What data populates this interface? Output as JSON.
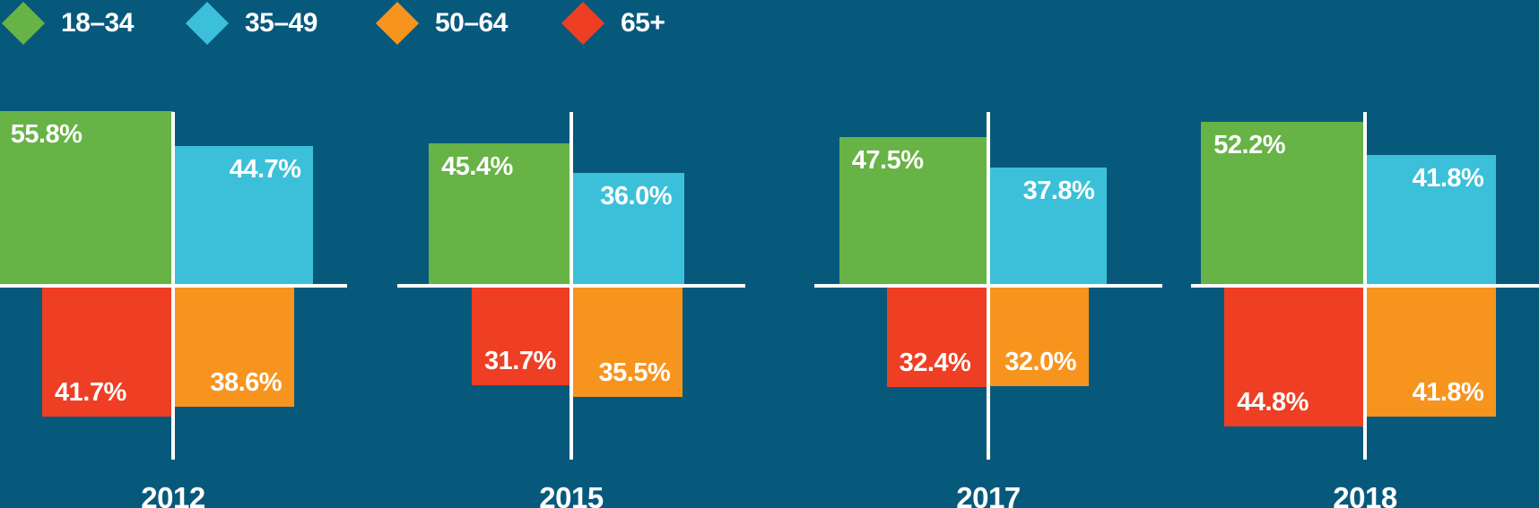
{
  "background_color": "#07597c",
  "legend": {
    "items": [
      {
        "label": "18–34",
        "color": "#67b346",
        "icon": "diamond-icon"
      },
      {
        "label": "35–49",
        "color": "#3cc0d9",
        "icon": "diamond-icon"
      },
      {
        "label": "50–64",
        "color": "#f7941e",
        "icon": "diamond-icon"
      },
      {
        "label": "65+",
        "color": "#ee3e23",
        "icon": "diamond-icon"
      }
    ]
  },
  "chart_data": {
    "type": "bar",
    "subtype": "quadrant-squares",
    "title": "",
    "categories": [
      "2012",
      "2015",
      "2017",
      "2018"
    ],
    "series": [
      {
        "name": "18–34",
        "color": "#67b346",
        "quadrant": "top-left",
        "values": [
          55.8,
          45.4,
          47.5,
          52.2
        ]
      },
      {
        "name": "35–49",
        "color": "#3cc0d9",
        "quadrant": "top-right",
        "values": [
          44.7,
          36.0,
          37.8,
          41.8
        ]
      },
      {
        "name": "50–64",
        "color": "#f7941e",
        "quadrant": "bottom-right",
        "values": [
          38.6,
          35.5,
          32.0,
          41.8
        ]
      },
      {
        "name": "65+",
        "color": "#ee3e23",
        "quadrant": "bottom-left",
        "values": [
          41.7,
          31.7,
          32.4,
          44.8
        ]
      }
    ],
    "value_labels": [
      [
        "55.8%",
        "44.7%",
        "38.6%",
        "41.7%"
      ],
      [
        "45.4%",
        "36.0%",
        "35.5%",
        "31.7%"
      ],
      [
        "47.5%",
        "37.8%",
        "32.0%",
        "32.4%"
      ],
      [
        "52.2%",
        "41.8%",
        "41.8%",
        "44.8%"
      ]
    ],
    "value_format": "percent_one_decimal",
    "axis_color": "#ffffff",
    "label_color": "#ffffff",
    "legend_position": "top-left",
    "grid": false
  }
}
